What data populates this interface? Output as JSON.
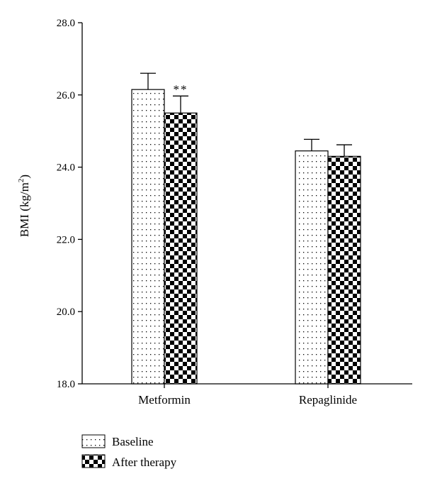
{
  "chart_data": {
    "type": "bar",
    "title": "",
    "xlabel": "",
    "ylabel": "BMI (kg/m",
    "ylabel_sup": "2",
    "ylabel_close": ")",
    "ylim": [
      18.0,
      28.0
    ],
    "yticks": [
      18.0,
      20.0,
      22.0,
      24.0,
      26.0,
      28.0
    ],
    "ytick_labels": [
      "18.0",
      "20.0",
      "22.0",
      "24.0",
      "26.0",
      "28.0"
    ],
    "categories": [
      "Metformin",
      "Repaglinide"
    ],
    "series": [
      {
        "name": "Baseline",
        "values": [
          26.15,
          24.45
        ],
        "errors": [
          0.45,
          0.32
        ]
      },
      {
        "name": "After therapy",
        "values": [
          25.5,
          24.3
        ],
        "errors": [
          0.47,
          0.32
        ]
      }
    ],
    "annotations": [
      {
        "text": "**",
        "category": "Metformin",
        "series": "After therapy"
      }
    ],
    "legend_position": "bottom-left",
    "grid": false
  }
}
